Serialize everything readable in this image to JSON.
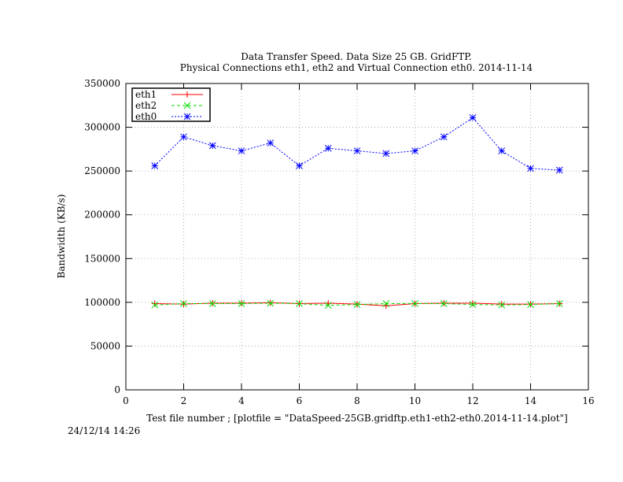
{
  "chart_data": {
    "type": "line",
    "title": "Data Transfer Speed. Data Size 25 GB. GridFTP.",
    "subtitle": "Physical Connections eth1, eth2 and Virtual Connection eth0. 2014-11-14",
    "xlabel": "Test file number ; [plotfile = \"DataSpeed-25GB.gridftp.eth1-eth2-eth0.2014-11-14.plot\"]",
    "ylabel": "Bandwidth (KB/s)",
    "xlim": [
      0,
      16
    ],
    "ylim": [
      0,
      350000
    ],
    "xticks": [
      0,
      2,
      4,
      6,
      8,
      10,
      12,
      14,
      16
    ],
    "yticks": [
      0,
      50000,
      100000,
      150000,
      200000,
      250000,
      300000,
      350000
    ],
    "grid": true,
    "legend_position": "top-left",
    "x": [
      1,
      2,
      3,
      4,
      5,
      6,
      7,
      8,
      9,
      10,
      11,
      12,
      13,
      14,
      15
    ],
    "series": [
      {
        "name": "eth1",
        "color": "#ff0000",
        "marker": "plus",
        "dash": "solid",
        "values": [
          98500,
          98000,
          99000,
          99000,
          99500,
          98500,
          99000,
          98000,
          96000,
          98500,
          99000,
          99000,
          98000,
          98000,
          98500
        ]
      },
      {
        "name": "eth2",
        "color": "#00dd00",
        "marker": "cross",
        "dash": "dashed",
        "values": [
          97000,
          98500,
          98500,
          98500,
          99000,
          98500,
          96500,
          97500,
          98500,
          98500,
          98500,
          97500,
          97000,
          97500,
          98500
        ]
      },
      {
        "name": "eth0",
        "color": "#0000ff",
        "marker": "star",
        "dash": "dotted",
        "values": [
          256000,
          289000,
          279000,
          273000,
          282000,
          256000,
          276000,
          273000,
          270000,
          273000,
          289000,
          311000,
          273000,
          253000,
          251000
        ]
      }
    ]
  },
  "timestamp": "24/12/14 14:26"
}
